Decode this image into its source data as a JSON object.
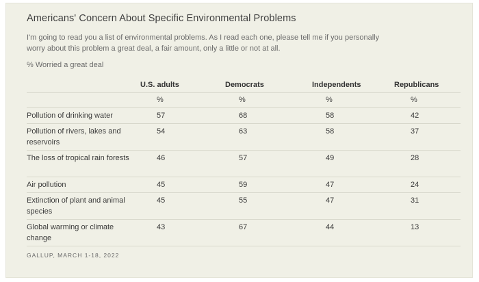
{
  "title": "Americans' Concern About Specific Environmental Problems",
  "subtitle": "I'm going to read you a list of environmental problems. As I read each one, please tell me if you personally worry about this problem a great deal, a fair amount, only a little or not at all.",
  "note": "% Worried a great deal",
  "table": {
    "headers": [
      "",
      "U.S. adults",
      "Democrats",
      "Independents",
      "Republicans"
    ],
    "units": [
      "",
      "%",
      "%",
      "%",
      "%"
    ],
    "rows": [
      {
        "label": "Pollution of drinking water",
        "values": [
          "57",
          "68",
          "58",
          "42"
        ]
      },
      {
        "label": "Pollution of rivers, lakes and reservoirs",
        "values": [
          "54",
          "63",
          "58",
          "37"
        ]
      },
      {
        "label": "The loss of tropical rain forests",
        "values": [
          "46",
          "57",
          "49",
          "28"
        ]
      },
      {
        "label": "Air pollution",
        "values": [
          "45",
          "59",
          "47",
          "24"
        ]
      },
      {
        "label": "Extinction of plant and animal species",
        "values": [
          "45",
          "55",
          "47",
          "31"
        ]
      },
      {
        "label": "Global warming or climate change",
        "values": [
          "43",
          "67",
          "44",
          "13"
        ]
      }
    ]
  },
  "source": "GALLUP, MARCH 1-18, 2022"
}
